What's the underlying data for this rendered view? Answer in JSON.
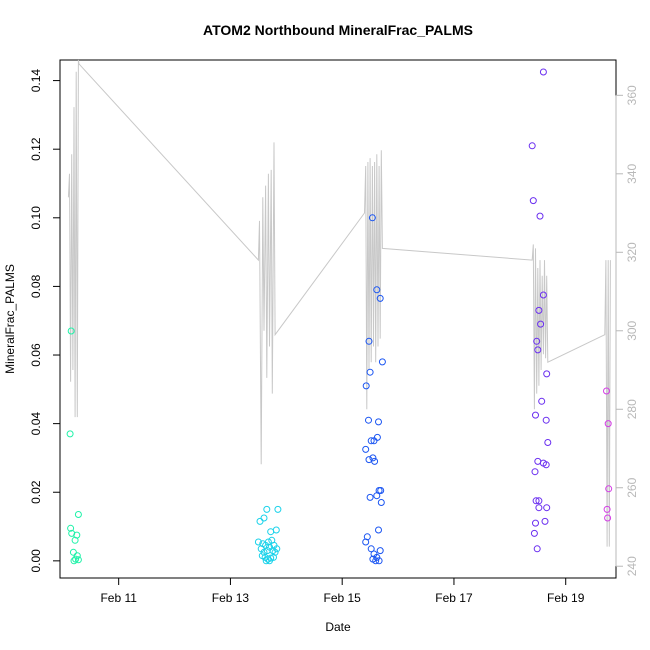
{
  "chart_data": {
    "type": "scatter",
    "title": "ATOM2 Northbound MineralFrac_PALMS",
    "xlabel": "Date",
    "ylabel": "MineralFrac_PALMS",
    "xlim": [
      9.95,
      19.9
    ],
    "ylim": [
      -0.005,
      0.146
    ],
    "y2lim": [
      237,
      369
    ],
    "x_ticks": [
      {
        "x": 11,
        "label": "Feb 11"
      },
      {
        "x": 13,
        "label": "Feb 13"
      },
      {
        "x": 15,
        "label": "Feb 15"
      },
      {
        "x": 17,
        "label": "Feb 17"
      },
      {
        "x": 19,
        "label": "Feb 19"
      }
    ],
    "y_ticks": [
      {
        "v": 0.0,
        "label": "0.00"
      },
      {
        "v": 0.02,
        "label": "0.02"
      },
      {
        "v": 0.04,
        "label": "0.04"
      },
      {
        "v": 0.06,
        "label": "0.06"
      },
      {
        "v": 0.08,
        "label": "0.08"
      },
      {
        "v": 0.1,
        "label": "0.10"
      },
      {
        "v": 0.12,
        "label": "0.12"
      },
      {
        "v": 0.14,
        "label": "0.14"
      }
    ],
    "y2_ticks": [
      {
        "v": 240,
        "label": "240"
      },
      {
        "v": 260,
        "label": "260"
      },
      {
        "v": 280,
        "label": "280"
      },
      {
        "v": 300,
        "label": "300"
      },
      {
        "v": 320,
        "label": "320"
      },
      {
        "v": 340,
        "label": "340"
      },
      {
        "v": 360,
        "label": "360"
      }
    ],
    "grid": false,
    "legend": "none",
    "line_color": "#c8c8c8",
    "right_axis_color": "#b8b8b8",
    "points": [
      {
        "x": 10.15,
        "y": 0.067,
        "color": "#1ef2a8"
      },
      {
        "x": 10.13,
        "y": 0.037,
        "color": "#1ef2a8"
      },
      {
        "x": 10.28,
        "y": 0.0135,
        "color": "#1ef2a8"
      },
      {
        "x": 10.14,
        "y": 0.0095,
        "color": "#1ef2a8"
      },
      {
        "x": 10.16,
        "y": 0.008,
        "color": "#1ef2a8"
      },
      {
        "x": 10.25,
        "y": 0.0075,
        "color": "#1ef2a8"
      },
      {
        "x": 10.22,
        "y": 0.006,
        "color": "#1ef2a8"
      },
      {
        "x": 10.19,
        "y": 0.0025,
        "color": "#1ef2a8"
      },
      {
        "x": 10.26,
        "y": 0.0015,
        "color": "#1ef2a8"
      },
      {
        "x": 10.23,
        "y": 0.0005,
        "color": "#1ef2a8"
      },
      {
        "x": 10.28,
        "y": 0.0003,
        "color": "#1ef2a8"
      },
      {
        "x": 10.2,
        "y": 0.0,
        "color": "#1ef2a8"
      },
      {
        "x": 13.53,
        "y": 0.0115,
        "color": "#19d2ea"
      },
      {
        "x": 13.6,
        "y": 0.0125,
        "color": "#19d2ea"
      },
      {
        "x": 13.65,
        "y": 0.015,
        "color": "#19d2ea"
      },
      {
        "x": 13.85,
        "y": 0.015,
        "color": "#19d2ea"
      },
      {
        "x": 13.72,
        "y": 0.0085,
        "color": "#19d2ea"
      },
      {
        "x": 13.82,
        "y": 0.009,
        "color": "#19d2ea"
      },
      {
        "x": 13.5,
        "y": 0.0055,
        "color": "#19d2ea"
      },
      {
        "x": 13.58,
        "y": 0.005,
        "color": "#19d2ea"
      },
      {
        "x": 13.63,
        "y": 0.0045,
        "color": "#19d2ea"
      },
      {
        "x": 13.68,
        "y": 0.0055,
        "color": "#19d2ea"
      },
      {
        "x": 13.74,
        "y": 0.006,
        "color": "#19d2ea"
      },
      {
        "x": 13.78,
        "y": 0.0045,
        "color": "#19d2ea"
      },
      {
        "x": 13.55,
        "y": 0.0035,
        "color": "#19d2ea"
      },
      {
        "x": 13.6,
        "y": 0.0025,
        "color": "#19d2ea"
      },
      {
        "x": 13.66,
        "y": 0.003,
        "color": "#19d2ea"
      },
      {
        "x": 13.7,
        "y": 0.004,
        "color": "#19d2ea"
      },
      {
        "x": 13.76,
        "y": 0.003,
        "color": "#19d2ea"
      },
      {
        "x": 13.8,
        "y": 0.0025,
        "color": "#19d2ea"
      },
      {
        "x": 13.57,
        "y": 0.0015,
        "color": "#19d2ea"
      },
      {
        "x": 13.62,
        "y": 0.001,
        "color": "#19d2ea"
      },
      {
        "x": 13.67,
        "y": 0.0005,
        "color": "#19d2ea"
      },
      {
        "x": 13.72,
        "y": 0.0008,
        "color": "#19d2ea"
      },
      {
        "x": 13.77,
        "y": 0.001,
        "color": "#19d2ea"
      },
      {
        "x": 13.64,
        "y": 0.0,
        "color": "#19d2ea"
      },
      {
        "x": 13.7,
        "y": 0.0,
        "color": "#19d2ea"
      },
      {
        "x": 13.83,
        "y": 0.0035,
        "color": "#19d2ea"
      },
      {
        "x": 15.54,
        "y": 0.1,
        "color": "#1a55f2"
      },
      {
        "x": 15.62,
        "y": 0.079,
        "color": "#1a55f2"
      },
      {
        "x": 15.68,
        "y": 0.0765,
        "color": "#1a55f2"
      },
      {
        "x": 15.48,
        "y": 0.064,
        "color": "#1a55f2"
      },
      {
        "x": 15.72,
        "y": 0.058,
        "color": "#1a55f2"
      },
      {
        "x": 15.5,
        "y": 0.055,
        "color": "#1a55f2"
      },
      {
        "x": 15.43,
        "y": 0.051,
        "color": "#1a55f2"
      },
      {
        "x": 15.47,
        "y": 0.041,
        "color": "#1a55f2"
      },
      {
        "x": 15.65,
        "y": 0.0405,
        "color": "#1a55f2"
      },
      {
        "x": 15.63,
        "y": 0.036,
        "color": "#1a55f2"
      },
      {
        "x": 15.52,
        "y": 0.035,
        "color": "#1a55f2"
      },
      {
        "x": 15.57,
        "y": 0.035,
        "color": "#1a55f2"
      },
      {
        "x": 15.42,
        "y": 0.0325,
        "color": "#1a55f2"
      },
      {
        "x": 15.48,
        "y": 0.0295,
        "color": "#1a55f2"
      },
      {
        "x": 15.55,
        "y": 0.03,
        "color": "#1a55f2"
      },
      {
        "x": 15.58,
        "y": 0.029,
        "color": "#1a55f2"
      },
      {
        "x": 15.66,
        "y": 0.0205,
        "color": "#1a55f2"
      },
      {
        "x": 15.69,
        "y": 0.0205,
        "color": "#1a55f2"
      },
      {
        "x": 15.62,
        "y": 0.019,
        "color": "#1a55f2"
      },
      {
        "x": 15.5,
        "y": 0.0185,
        "color": "#1a55f2"
      },
      {
        "x": 15.7,
        "y": 0.017,
        "color": "#1a55f2"
      },
      {
        "x": 15.65,
        "y": 0.009,
        "color": "#1a55f2"
      },
      {
        "x": 15.45,
        "y": 0.007,
        "color": "#1a55f2"
      },
      {
        "x": 15.42,
        "y": 0.0055,
        "color": "#1a55f2"
      },
      {
        "x": 15.52,
        "y": 0.0035,
        "color": "#1a55f2"
      },
      {
        "x": 15.68,
        "y": 0.003,
        "color": "#1a55f2"
      },
      {
        "x": 15.57,
        "y": 0.002,
        "color": "#1a55f2"
      },
      {
        "x": 15.62,
        "y": 0.001,
        "color": "#1a55f2"
      },
      {
        "x": 15.55,
        "y": 0.0005,
        "color": "#1a55f2"
      },
      {
        "x": 15.6,
        "y": 0.0,
        "color": "#1a55f2"
      },
      {
        "x": 15.66,
        "y": 0.0,
        "color": "#1a55f2"
      },
      {
        "x": 18.6,
        "y": 0.1425,
        "color": "#6a2ef0"
      },
      {
        "x": 18.4,
        "y": 0.121,
        "color": "#6a2ef0"
      },
      {
        "x": 18.42,
        "y": 0.105,
        "color": "#6a2ef0"
      },
      {
        "x": 18.54,
        "y": 0.1005,
        "color": "#6a2ef0"
      },
      {
        "x": 18.6,
        "y": 0.0775,
        "color": "#6a2ef0"
      },
      {
        "x": 18.52,
        "y": 0.073,
        "color": "#6a2ef0"
      },
      {
        "x": 18.55,
        "y": 0.069,
        "color": "#6a2ef0"
      },
      {
        "x": 18.48,
        "y": 0.064,
        "color": "#6a2ef0"
      },
      {
        "x": 18.5,
        "y": 0.0615,
        "color": "#6a2ef0"
      },
      {
        "x": 18.66,
        "y": 0.0545,
        "color": "#6a2ef0"
      },
      {
        "x": 18.57,
        "y": 0.0465,
        "color": "#6a2ef0"
      },
      {
        "x": 18.46,
        "y": 0.0425,
        "color": "#6a2ef0"
      },
      {
        "x": 18.65,
        "y": 0.041,
        "color": "#6a2ef0"
      },
      {
        "x": 18.68,
        "y": 0.0345,
        "color": "#6a2ef0"
      },
      {
        "x": 18.5,
        "y": 0.029,
        "color": "#6a2ef0"
      },
      {
        "x": 18.6,
        "y": 0.0285,
        "color": "#6a2ef0"
      },
      {
        "x": 18.65,
        "y": 0.028,
        "color": "#6a2ef0"
      },
      {
        "x": 18.45,
        "y": 0.026,
        "color": "#6a2ef0"
      },
      {
        "x": 18.47,
        "y": 0.0175,
        "color": "#6a2ef0"
      },
      {
        "x": 18.52,
        "y": 0.0175,
        "color": "#6a2ef0"
      },
      {
        "x": 18.66,
        "y": 0.0155,
        "color": "#6a2ef0"
      },
      {
        "x": 18.52,
        "y": 0.0155,
        "color": "#6a2ef0"
      },
      {
        "x": 18.63,
        "y": 0.0115,
        "color": "#6a2ef0"
      },
      {
        "x": 18.46,
        "y": 0.011,
        "color": "#6a2ef0"
      },
      {
        "x": 18.44,
        "y": 0.008,
        "color": "#6a2ef0"
      },
      {
        "x": 18.49,
        "y": 0.0035,
        "color": "#6a2ef0"
      },
      {
        "x": 19.73,
        "y": 0.0495,
        "color": "#d43ee6"
      },
      {
        "x": 19.76,
        "y": 0.04,
        "color": "#d43ee6"
      },
      {
        "x": 19.77,
        "y": 0.021,
        "color": "#d43ee6"
      },
      {
        "x": 19.74,
        "y": 0.015,
        "color": "#d43ee6"
      },
      {
        "x": 19.75,
        "y": 0.0125,
        "color": "#d43ee6"
      }
    ],
    "line_series": {
      "name": "",
      "x": [
        10.1,
        10.12,
        10.14,
        10.16,
        10.18,
        10.2,
        10.22,
        10.24,
        10.26,
        10.28,
        10.29,
        13.5,
        13.52,
        13.55,
        13.58,
        13.6,
        13.63,
        13.65,
        13.68,
        13.7,
        13.73,
        13.75,
        13.78,
        13.8,
        15.4,
        15.42,
        15.44,
        15.46,
        15.48,
        15.5,
        15.52,
        15.54,
        15.56,
        15.58,
        15.6,
        15.62,
        15.64,
        15.66,
        15.68,
        15.7,
        15.72,
        18.4,
        18.42,
        18.44,
        18.46,
        18.48,
        18.5,
        18.52,
        18.54,
        18.56,
        18.58,
        18.6,
        18.62,
        18.64,
        18.66,
        18.68,
        19.7,
        19.72,
        19.74,
        19.76,
        19.78,
        19.8
      ],
      "y": [
        334,
        340,
        287,
        345,
        290,
        357,
        278,
        366,
        278,
        369,
        368,
        318,
        328,
        266,
        334,
        300,
        337,
        288,
        340,
        296,
        341,
        284,
        348,
        299,
        330,
        342,
        280,
        343,
        290,
        344,
        292,
        342,
        296,
        343,
        292,
        345,
        296,
        342,
        298,
        346,
        321,
        318,
        322,
        280,
        321,
        284,
        316,
        286,
        318,
        290,
        314,
        294,
        318,
        293,
        314,
        292,
        299,
        318,
        245,
        318,
        245,
        318
      ]
    }
  }
}
